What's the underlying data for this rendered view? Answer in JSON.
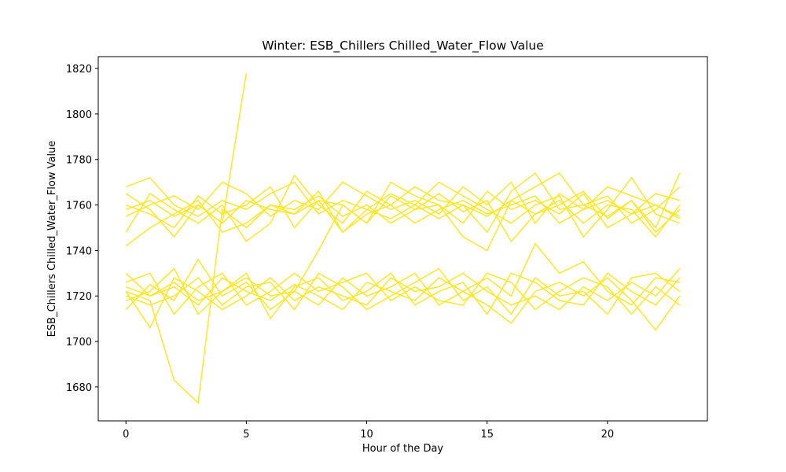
{
  "chart_data": {
    "type": "line",
    "title": "Winter: ESB_Chillers Chilled_Water_Flow Value",
    "xlabel": "Hour of the Day",
    "ylabel": "ESB_Chillers Chilled_Water_Flow Value",
    "x": [
      0,
      1,
      2,
      3,
      4,
      5,
      6,
      7,
      8,
      9,
      10,
      11,
      12,
      13,
      14,
      15,
      16,
      17,
      18,
      19,
      20,
      21,
      22,
      23
    ],
    "xlim": [
      -1.15,
      24.15
    ],
    "xticks": [
      0,
      5,
      10,
      15,
      20
    ],
    "ylim": [
      1665.1,
      1825.2
    ],
    "yticks": [
      1680,
      1700,
      1720,
      1740,
      1760,
      1780,
      1800,
      1820
    ],
    "series": [
      {
        "color": "#fde725",
        "values": [
          1768,
          1772,
          1760,
          1755,
          1762,
          1758,
          1765,
          1770,
          1756,
          1762,
          1758,
          1765,
          1760,
          1754,
          1760,
          1748,
          1766,
          1774,
          1758,
          1760,
          1755,
          1762,
          1750,
          1774
        ]
      },
      {
        "color": "#fde725",
        "values": [
          1742,
          1750,
          1756,
          1762,
          1748,
          1752,
          1760,
          1758,
          1764,
          1755,
          1760,
          1752,
          1758,
          1765,
          1757,
          1762,
          1744,
          1756,
          1762,
          1752,
          1760,
          1758,
          1746,
          1760
        ]
      },
      {
        "color": "#fde725",
        "values": [
          1755,
          1760,
          1764,
          1758,
          1770,
          1765,
          1755,
          1762,
          1758,
          1770,
          1764,
          1758,
          1762,
          1756,
          1768,
          1760,
          1770,
          1752,
          1765,
          1758,
          1768,
          1764,
          1760,
          1755
        ]
      },
      {
        "color": "#fde725",
        "values": [
          1760,
          1756,
          1750,
          1764,
          1756,
          1760,
          1768,
          1750,
          1762,
          1760,
          1752,
          1770,
          1764,
          1760,
          1752,
          1766,
          1758,
          1762,
          1756,
          1765,
          1750,
          1756,
          1765,
          1762
        ]
      },
      {
        "color": "#fde725",
        "values": [
          1748,
          1765,
          1758,
          1752,
          1760,
          1744,
          1752,
          1773,
          1760,
          1752,
          1766,
          1760,
          1768,
          1762,
          1760,
          1755,
          1762,
          1768,
          1774,
          1760,
          1764,
          1752,
          1758,
          1768
        ]
      },
      {
        "color": "#fde725",
        "values": [
          1765,
          1758,
          1746,
          1760,
          1752,
          1762,
          1758,
          1756,
          1766,
          1748,
          1758,
          1754,
          1760,
          1770,
          1764,
          1758,
          1752,
          1760,
          1764,
          1746,
          1758,
          1772,
          1756,
          1752
        ]
      },
      {
        "color": "#fde725",
        "values": [
          1730,
          1720,
          1724,
          1716,
          1728,
          1722,
          1718,
          1725,
          1720,
          1714,
          1726,
          1722,
          1718,
          1728,
          1722,
          1716,
          1708,
          1722,
          1726,
          1720,
          1728,
          1718,
          1705,
          1720
        ]
      },
      {
        "color": "#fde725",
        "values": [
          1714,
          1725,
          1718,
          1736,
          1720,
          1726,
          1714,
          1722,
          1716,
          1728,
          1720,
          1724,
          1730,
          1716,
          1722,
          1728,
          1720,
          1743,
          1730,
          1735,
          1722,
          1716,
          1728,
          1726
        ]
      },
      {
        "color": "#fde725",
        "values": [
          1722,
          1706,
          1728,
          1722,
          1714,
          1720,
          1728,
          1718,
          1724,
          1720,
          1716,
          1728,
          1722,
          1724,
          1730,
          1722,
          1716,
          1720,
          1714,
          1724,
          1718,
          1726,
          1720,
          1732
        ]
      },
      {
        "color": "#fde725",
        "values": [
          1726,
          1730,
          1712,
          1724,
          1730,
          1716,
          1722,
          1730,
          1722,
          1726,
          1730,
          1718,
          1724,
          1718,
          1716,
          1730,
          1726,
          1714,
          1722,
          1728,
          1724,
          1712,
          1724,
          1716
        ]
      },
      {
        "color": "#fde725",
        "values": [
          1718,
          1722,
          1732,
          1712,
          1722,
          1730,
          1710,
          1724,
          1728,
          1718,
          1722,
          1730,
          1716,
          1722,
          1726,
          1712,
          1730,
          1726,
          1718,
          1716,
          1730,
          1722,
          1716,
          1728
        ]
      },
      {
        "color": "#fde725",
        "values": [
          1720,
          1716,
          1720,
          1728,
          1716,
          1724,
          1726,
          1714,
          1730,
          1724,
          1714,
          1720,
          1726,
          1732,
          1718,
          1724,
          1712,
          1728,
          1720,
          1722,
          1712,
          1728,
          1730,
          1722
        ]
      },
      {
        "color": "#fde725",
        "values": [
          1758,
          1762,
          1755,
          1760,
          1752,
          1818,
          null,
          null,
          null,
          null,
          null,
          null,
          null,
          null,
          null,
          null,
          null,
          null,
          null,
          null,
          null,
          null,
          null,
          null
        ]
      },
      {
        "color": "#fde725",
        "values": [
          1722,
          1718,
          1683,
          1673,
          1758,
          1750,
          1760,
          1756,
          1762,
          1748,
          1756,
          1760,
          1752,
          1758,
          1762,
          1756,
          1760,
          1764,
          1752,
          1758,
          1762,
          1756,
          1760,
          1754
        ]
      },
      {
        "color": "#fde725",
        "values": [
          1724,
          1720,
          1726,
          1718,
          1722,
          1728,
          1720,
          1722,
          1740,
          1760,
          1752,
          1764,
          1758,
          1760,
          1746,
          1740,
          1762,
          1756,
          1760,
          1766,
          1754,
          1762,
          1748,
          1758
        ]
      }
    ]
  }
}
